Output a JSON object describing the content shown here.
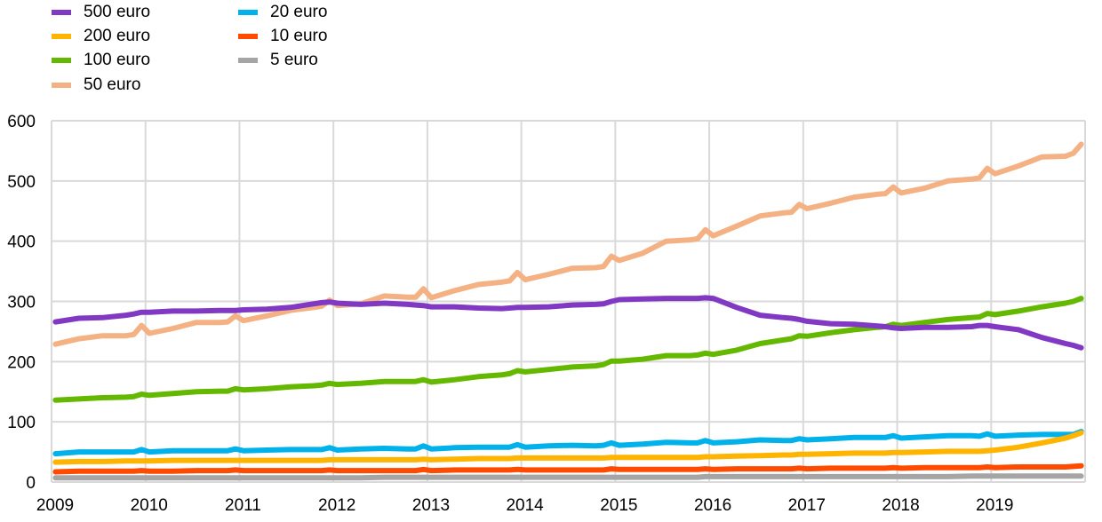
{
  "chart_data": {
    "type": "line",
    "title": "",
    "xlabel": "",
    "ylabel": "",
    "ylim": [
      0,
      600
    ],
    "yticks": [
      "0",
      "100",
      "200",
      "300",
      "400",
      "500",
      "600"
    ],
    "xticks": [
      "2009",
      "2010",
      "2011",
      "2012",
      "2013",
      "2014",
      "2015",
      "2016",
      "2017",
      "2018",
      "2019"
    ],
    "xlim": [
      "2009-01",
      "2019-12"
    ],
    "grid": true,
    "legend_position": "top-left",
    "x": [
      "2009-01",
      "2009-04",
      "2009-07",
      "2009-10",
      "2009-11",
      "2009-12",
      "2010-01",
      "2010-04",
      "2010-07",
      "2010-10",
      "2010-11",
      "2010-12",
      "2011-01",
      "2011-04",
      "2011-07",
      "2011-10",
      "2011-11",
      "2011-12",
      "2012-01",
      "2012-04",
      "2012-07",
      "2012-10",
      "2012-11",
      "2012-12",
      "2013-01",
      "2013-04",
      "2013-07",
      "2013-10",
      "2013-11",
      "2013-12",
      "2014-01",
      "2014-04",
      "2014-07",
      "2014-10",
      "2014-11",
      "2014-12",
      "2015-01",
      "2015-04",
      "2015-07",
      "2015-10",
      "2015-11",
      "2015-12",
      "2016-01",
      "2016-04",
      "2016-07",
      "2016-10",
      "2016-11",
      "2016-12",
      "2017-01",
      "2017-04",
      "2017-07",
      "2017-10",
      "2017-11",
      "2017-12",
      "2018-01",
      "2018-04",
      "2018-07",
      "2018-10",
      "2018-11",
      "2018-12",
      "2019-01",
      "2019-04",
      "2019-07",
      "2019-10",
      "2019-11",
      "2019-12"
    ],
    "series": [
      {
        "name": "500 euro",
        "color": "#8139c3",
        "values": [
          266,
          272,
          273,
          277,
          279,
          282,
          282,
          284,
          284,
          285,
          285,
          285,
          286,
          287,
          290,
          296,
          298,
          299,
          297,
          295,
          297,
          295,
          294,
          293,
          291,
          291,
          289,
          288,
          289,
          290,
          290,
          291,
          294,
          295,
          296,
          300,
          303,
          304,
          305,
          305,
          305,
          306,
          305,
          290,
          277,
          273,
          272,
          270,
          267,
          263,
          262,
          259,
          258,
          256,
          255,
          257,
          257,
          258,
          260,
          260,
          258,
          253,
          240,
          230,
          227,
          223
        ]
      },
      {
        "name": "200 euro",
        "color": "#ffb400",
        "values": [
          33,
          34,
          34,
          35,
          35,
          35,
          35,
          36,
          36,
          36,
          36,
          36,
          36,
          36,
          36,
          36,
          36,
          37,
          37,
          37,
          37,
          37,
          37,
          38,
          37,
          38,
          39,
          39,
          39,
          40,
          40,
          40,
          40,
          40,
          40,
          41,
          41,
          41,
          41,
          41,
          41,
          42,
          42,
          43,
          44,
          45,
          45,
          46,
          46,
          47,
          48,
          48,
          48,
          49,
          49,
          50,
          51,
          51,
          51,
          52,
          53,
          58,
          65,
          73,
          77,
          82
        ]
      },
      {
        "name": "100 euro",
        "color": "#65b800",
        "values": [
          136,
          138,
          140,
          141,
          142,
          146,
          144,
          147,
          150,
          151,
          151,
          155,
          153,
          155,
          158,
          160,
          161,
          164,
          162,
          164,
          167,
          167,
          167,
          170,
          166,
          170,
          175,
          178,
          180,
          185,
          183,
          187,
          191,
          193,
          195,
          201,
          201,
          204,
          210,
          210,
          211,
          214,
          212,
          219,
          230,
          236,
          238,
          243,
          242,
          248,
          253,
          257,
          258,
          262,
          260,
          265,
          270,
          273,
          274,
          280,
          278,
          284,
          291,
          297,
          300,
          305
        ]
      },
      {
        "name": "50 euro",
        "color": "#f4b183",
        "values": [
          229,
          238,
          243,
          243,
          245,
          260,
          247,
          255,
          265,
          265,
          266,
          276,
          268,
          276,
          285,
          290,
          292,
          302,
          293,
          296,
          309,
          307,
          307,
          321,
          306,
          318,
          328,
          332,
          334,
          348,
          336,
          345,
          355,
          356,
          358,
          375,
          368,
          380,
          400,
          402,
          404,
          419,
          409,
          425,
          442,
          447,
          448,
          461,
          454,
          463,
          473,
          478,
          479,
          490,
          480,
          488,
          500,
          503,
          505,
          521,
          512,
          525,
          540,
          541,
          546,
          561
        ]
      },
      {
        "name": "20 euro",
        "color": "#00b1ea",
        "values": [
          47,
          50,
          50,
          50,
          50,
          54,
          50,
          52,
          52,
          52,
          52,
          55,
          52,
          53,
          54,
          54,
          54,
          57,
          53,
          55,
          56,
          55,
          55,
          60,
          55,
          57,
          58,
          58,
          58,
          62,
          58,
          60,
          61,
          60,
          61,
          65,
          61,
          63,
          66,
          65,
          65,
          69,
          65,
          67,
          70,
          69,
          69,
          72,
          70,
          72,
          74,
          74,
          74,
          77,
          73,
          75,
          77,
          77,
          76,
          80,
          76,
          78,
          79,
          79,
          79,
          84
        ]
      },
      {
        "name": "10 euro",
        "color": "#ff4b00",
        "values": [
          17,
          18,
          18,
          18,
          18,
          19,
          18,
          18,
          19,
          19,
          19,
          20,
          19,
          19,
          19,
          19,
          19,
          20,
          19,
          19,
          19,
          19,
          19,
          21,
          19,
          20,
          20,
          20,
          20,
          21,
          20,
          20,
          20,
          20,
          20,
          22,
          21,
          21,
          21,
          21,
          21,
          22,
          21,
          22,
          22,
          22,
          22,
          23,
          22,
          23,
          23,
          23,
          23,
          24,
          23,
          24,
          24,
          24,
          24,
          25,
          24,
          25,
          25,
          25,
          26,
          27
        ]
      },
      {
        "name": "5 euro",
        "color": "#a5a5a5",
        "values": [
          7,
          7,
          7,
          7,
          7,
          7,
          7,
          7,
          7,
          7,
          7,
          7,
          7,
          7,
          7,
          7,
          7,
          7,
          7,
          7,
          8,
          8,
          8,
          8,
          8,
          8,
          8,
          8,
          8,
          8,
          8,
          8,
          8,
          8,
          8,
          8,
          8,
          8,
          8,
          8,
          8,
          9,
          9,
          9,
          9,
          9,
          9,
          9,
          9,
          9,
          9,
          9,
          9,
          9,
          9,
          9,
          9,
          10,
          10,
          10,
          10,
          10,
          10,
          10,
          10,
          10
        ]
      }
    ]
  }
}
